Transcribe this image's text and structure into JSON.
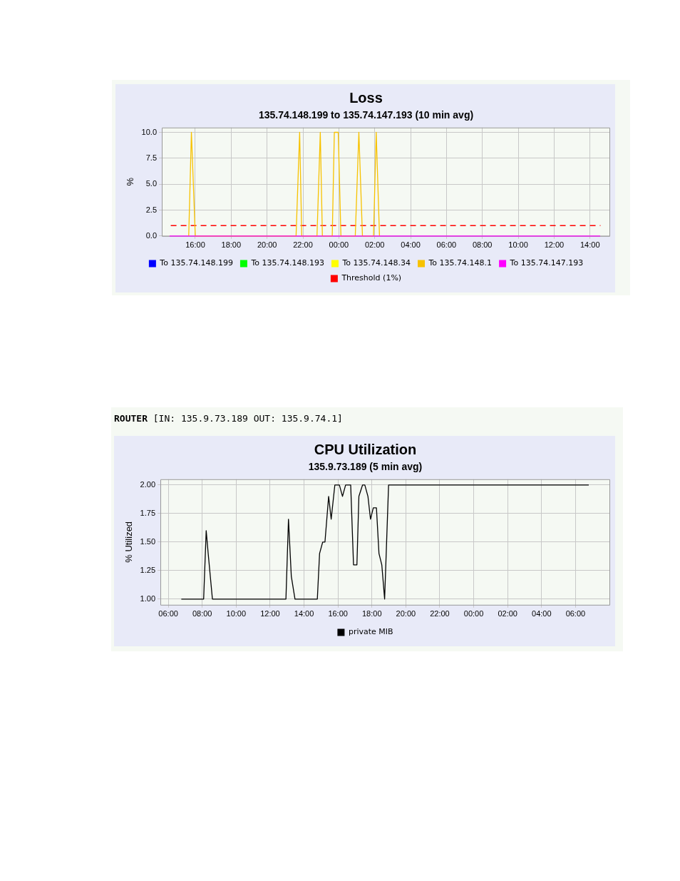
{
  "chart_data": [
    {
      "type": "line",
      "title": "Loss",
      "subtitle": "135.74.148.199 to 135.74.147.193 (10 min avg)",
      "ylabel": "%",
      "xlim": [
        "2000-01-01T14:08",
        "2000-01-02T15:05"
      ],
      "ylim": [
        0,
        10.46
      ],
      "xticks": [
        {
          "value": "2000-01-01T16:00",
          "label": "16:00"
        },
        {
          "value": "2000-01-01T18:00",
          "label": "18:00"
        },
        {
          "value": "2000-01-01T20:00",
          "label": "20:00"
        },
        {
          "value": "2000-01-01T22:00",
          "label": "22:00"
        },
        {
          "value": "2000-01-02T00:00",
          "label": "00:00"
        },
        {
          "value": "2000-01-02T02:00",
          "label": "02:00"
        },
        {
          "value": "2000-01-02T04:00",
          "label": "04:00"
        },
        {
          "value": "2000-01-02T06:00",
          "label": "06:00"
        },
        {
          "value": "2000-01-02T08:00",
          "label": "08:00"
        },
        {
          "value": "2000-01-02T10:00",
          "label": "10:00"
        },
        {
          "value": "2000-01-02T12:00",
          "label": "12:00"
        },
        {
          "value": "2000-01-02T14:00",
          "label": "14:00"
        }
      ],
      "yticks": [
        {
          "value": 0,
          "label": "0.0"
        },
        {
          "value": 2.5,
          "label": "2.5"
        },
        {
          "value": 5,
          "label": "5.0"
        },
        {
          "value": 7.5,
          "label": "7.5"
        },
        {
          "value": 10,
          "label": "10.0"
        }
      ],
      "grid": true,
      "legend": "bottom",
      "marker": "none",
      "line_style": "solid",
      "series": [
        {
          "name": "To 135.74.148.199",
          "color": "#0000ff"
        },
        {
          "name": "To 135.74.148.193",
          "color": "#00ff00"
        },
        {
          "name": "To 135.74.148.34",
          "color": "#ffff00"
        },
        {
          "name": "To 135.74.148.1",
          "color": "#f7c200",
          "x": [
            "2000-01-01T15:38",
            "2000-01-01T15:47",
            "2000-01-01T16:00",
            "2000-01-01T21:37",
            "2000-01-01T21:49",
            "2000-01-01T21:56",
            "2000-01-01T22:47",
            "2000-01-01T22:58",
            "2000-01-01T23:05",
            "2000-01-01T23:38",
            "2000-01-01T23:45",
            "2000-01-01T23:58",
            "2000-01-02T00:07",
            "2000-01-02T00:55",
            "2000-01-02T01:07",
            "2000-01-02T01:19",
            "2000-01-02T01:56",
            "2000-01-02T02:05",
            "2000-01-02T02:16"
          ],
          "values": [
            0,
            10,
            0,
            0,
            10,
            0,
            0,
            10,
            0,
            0,
            10,
            10,
            0,
            0,
            10,
            0,
            0,
            10,
            0
          ]
        },
        {
          "name": "To 135.74.147.193",
          "color": "#ff00ff",
          "x": [
            "2000-01-01T14:34",
            "2000-01-02T14:34"
          ],
          "values": [
            0,
            0
          ]
        }
      ],
      "ref_lines": [
        {
          "axis": "y",
          "value": 1,
          "label": "Threshold (1%)",
          "color": "#ff0000",
          "line_style": "dashed"
        }
      ]
    },
    {
      "type": "line",
      "title": "CPU Utilization",
      "subtitle": "135.9.73.189 (5 min avg)",
      "ylabel": "% Utilized",
      "annotations": [
        "ROUTER [IN: 135.9.73.189 OUT: 135.9.74.1]"
      ],
      "xlim": [
        "2000-01-01T05:32",
        "2000-01-02T08:00"
      ],
      "ylim": [
        0.95,
        2.05
      ],
      "xticks": [
        {
          "value": "2000-01-01T06:00",
          "label": "06:00"
        },
        {
          "value": "2000-01-01T08:00",
          "label": "08:00"
        },
        {
          "value": "2000-01-01T10:00",
          "label": "10:00"
        },
        {
          "value": "2000-01-01T12:00",
          "label": "12:00"
        },
        {
          "value": "2000-01-01T14:00",
          "label": "14:00"
        },
        {
          "value": "2000-01-01T16:00",
          "label": "16:00"
        },
        {
          "value": "2000-01-01T18:00",
          "label": "18:00"
        },
        {
          "value": "2000-01-01T20:00",
          "label": "20:00"
        },
        {
          "value": "2000-01-01T22:00",
          "label": "22:00"
        },
        {
          "value": "2000-01-02T00:00",
          "label": "00:00"
        },
        {
          "value": "2000-01-02T02:00",
          "label": "02:00"
        },
        {
          "value": "2000-01-02T04:00",
          "label": "04:00"
        },
        {
          "value": "2000-01-02T06:00",
          "label": "06:00"
        }
      ],
      "yticks": [
        {
          "value": 1,
          "label": "1.00"
        },
        {
          "value": 1.25,
          "label": "1.25"
        },
        {
          "value": 1.5,
          "label": "1.50"
        },
        {
          "value": 1.75,
          "label": "1.75"
        },
        {
          "value": 2,
          "label": "2.00"
        }
      ],
      "grid": true,
      "legend": "bottom",
      "marker": "none",
      "line_style": "solid",
      "series": [
        {
          "name": "private MIB",
          "color": "#000000",
          "x": [
            "2000-01-01T06:46",
            "2000-01-01T08:05",
            "2000-01-01T08:14",
            "2000-01-01T08:21",
            "2000-01-01T08:36",
            "2000-01-01T12:56",
            "2000-01-01T13:05",
            "2000-01-01T13:15",
            "2000-01-01T13:28",
            "2000-01-01T14:47",
            "2000-01-01T14:55",
            "2000-01-01T15:06",
            "2000-01-01T15:14",
            "2000-01-01T15:27",
            "2000-01-01T15:36",
            "2000-01-01T15:49",
            "2000-01-01T16:05",
            "2000-01-01T16:16",
            "2000-01-01T16:27",
            "2000-01-01T16:45",
            "2000-01-01T16:55",
            "2000-01-01T17:07",
            "2000-01-01T17:14",
            "2000-01-01T17:27",
            "2000-01-01T17:35",
            "2000-01-01T17:46",
            "2000-01-01T17:55",
            "2000-01-01T18:05",
            "2000-01-01T18:16",
            "2000-01-01T18:25",
            "2000-01-01T18:35",
            "2000-01-01T18:45",
            "2000-01-01T18:59",
            "2000-01-02T06:47"
          ],
          "values": [
            1,
            1,
            1.6,
            1.4,
            1,
            1,
            1.7,
            1.2,
            1,
            1,
            1.4,
            1.5,
            1.5,
            1.9,
            1.7,
            2,
            2,
            1.9,
            2,
            2,
            1.3,
            1.3,
            1.9,
            2,
            2,
            1.9,
            1.7,
            1.8,
            1.8,
            1.4,
            1.3,
            1,
            2,
            2
          ]
        }
      ]
    }
  ]
}
